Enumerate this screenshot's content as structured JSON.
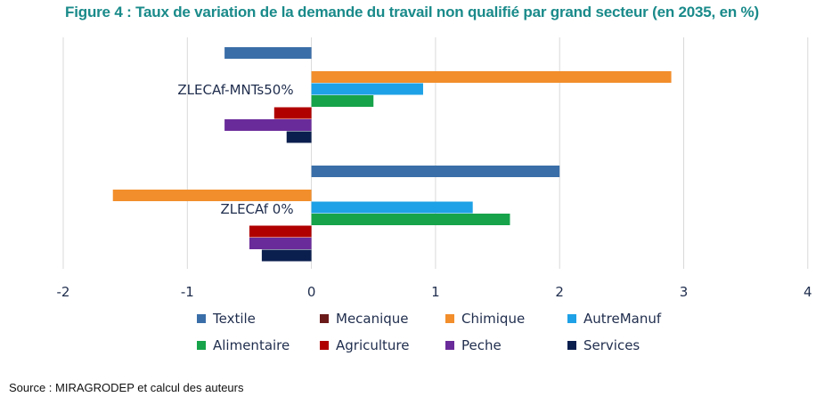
{
  "title": "Figure 4 : Taux de variation de la demande du travail non qualifié par grand secteur (en 2035, en %)",
  "source": "Source : MIRAGRODEP et calcul des auteurs",
  "colors": {
    "title": "#1a8a8a",
    "axis_text": "#1f2d4d",
    "grid": "#d9d9d9"
  },
  "chart_data": {
    "type": "bar",
    "orientation": "horizontal",
    "title": "Figure 4 : Taux de variation de la demande du travail non qualifié par grand secteur (en 2035, en %)",
    "xlim": [
      -2,
      4
    ],
    "xticks": [
      "-2",
      "-1",
      "0",
      "1",
      "2",
      "3",
      "4"
    ],
    "grid": "vertical",
    "legend_position": "bottom",
    "groups": [
      "ZLECAf-MNTs50%",
      "ZLECAf 0%"
    ],
    "series": [
      {
        "name": "Textile",
        "color": "#3a6ea8",
        "values": [
          -0.7,
          2.0
        ]
      },
      {
        "name": "Mecanique",
        "color": "#6b1a1a",
        "values": [
          0,
          0
        ]
      },
      {
        "name": "Chimique",
        "color": "#f28e2b",
        "values": [
          2.9,
          -1.6
        ]
      },
      {
        "name": "AutreManuf",
        "color": "#1ea1e6",
        "values": [
          0.9,
          1.3
        ]
      },
      {
        "name": "Alimentaire",
        "color": "#17a34a",
        "values": [
          0.5,
          1.6
        ]
      },
      {
        "name": "Agriculture",
        "color": "#b00000",
        "values": [
          -0.3,
          -0.5
        ]
      },
      {
        "name": "Peche",
        "color": "#6a2b9a",
        "values": [
          -0.7,
          -0.5
        ]
      },
      {
        "name": "Services",
        "color": "#0b1f4f",
        "values": [
          -0.2,
          -0.4
        ]
      }
    ]
  }
}
